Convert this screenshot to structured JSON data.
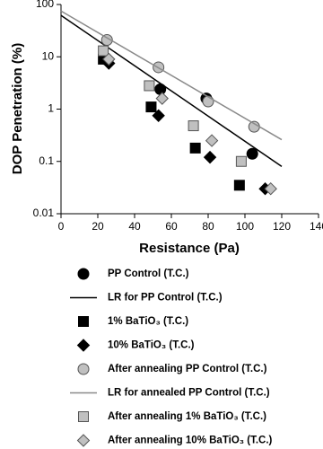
{
  "chart_data": {
    "type": "scatter",
    "x_label": "Resistance (Pa)",
    "y_label": "DOP Penetration (%)",
    "xlim": [
      0,
      140
    ],
    "xticks": [
      0,
      20,
      40,
      60,
      80,
      100,
      120,
      140
    ],
    "ylim": [
      0.01,
      100
    ],
    "yticks": [
      0.01,
      0.1,
      1,
      10,
      100
    ],
    "y_scale": "log",
    "series": [
      {
        "name": "PP Control (T.C.)",
        "marker": "circle",
        "color": "#000000",
        "x": [
          24,
          54,
          79,
          104
        ],
        "values": [
          9,
          2.4,
          1.6,
          0.14
        ]
      },
      {
        "name": "LR for PP Control (T.C.)",
        "marker": "line",
        "color": "#000000",
        "x": [
          0,
          120
        ],
        "values": [
          62,
          0.08
        ]
      },
      {
        "name": "1% BaTiO₃ (T.C.)",
        "marker": "square",
        "color": "#000000",
        "x": [
          23,
          49,
          73,
          97
        ],
        "values": [
          9,
          1.1,
          0.18,
          0.035
        ]
      },
      {
        "name": "10% BaTiO₃ (T.C.)",
        "marker": "diamond",
        "color": "#000000",
        "x": [
          26,
          53,
          81,
          111
        ],
        "values": [
          7.5,
          0.75,
          0.12,
          0.03
        ]
      },
      {
        "name": "After annealing PP Control (T.C.)",
        "marker": "circle",
        "color": "#c0c0c0",
        "x": [
          25,
          53,
          80,
          105
        ],
        "values": [
          21,
          6.3,
          1.4,
          0.46
        ]
      },
      {
        "name": "LR for annealed PP Control (T.C.)",
        "marker": "line",
        "color": "#8a8a8a",
        "x": [
          0,
          120
        ],
        "values": [
          75,
          0.26
        ]
      },
      {
        "name": "After annealing 1% BaTiO₃ (T.C.)",
        "marker": "square",
        "color": "#c0c0c0",
        "x": [
          23,
          48,
          72,
          98
        ],
        "values": [
          13,
          2.8,
          0.48,
          0.1
        ]
      },
      {
        "name": "After annealing 10% BaTiO₃ (T.C.)",
        "marker": "diamond",
        "color": "#c0c0c0",
        "x": [
          26,
          55,
          82,
          114
        ],
        "values": [
          9,
          1.6,
          0.25,
          0.03
        ]
      }
    ]
  }
}
